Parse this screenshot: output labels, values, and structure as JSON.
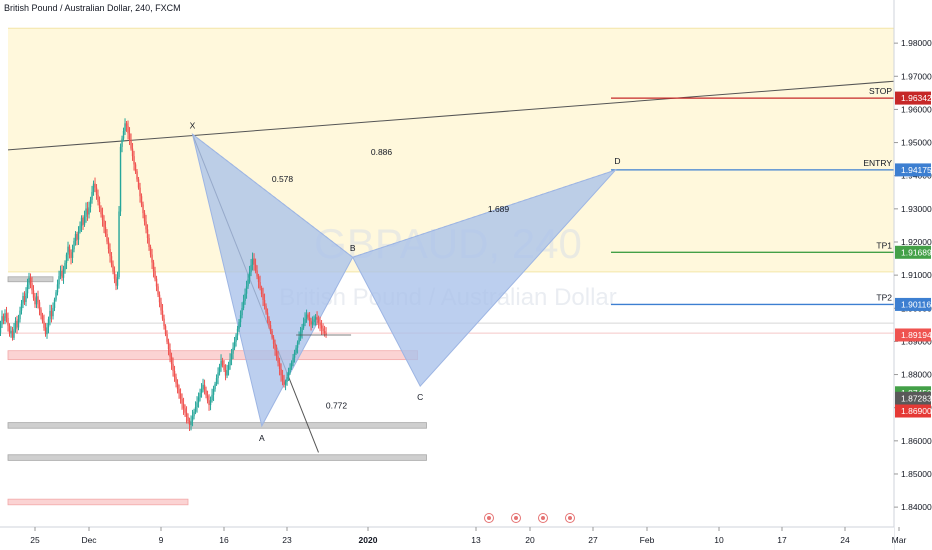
{
  "header": {
    "title": "British Pound / Australian Dollar, 240, FXCM"
  },
  "watermark": {
    "symbol": "GBPAUD, 240",
    "name": "British Pound / Australian Dollar"
  },
  "colors": {
    "up": "#26a69a",
    "down": "#ef5350",
    "pattern": "#a9c1ea",
    "stop": "#c62828",
    "entry": "#3d7fd1",
    "tp1": "#43a047",
    "tp2": "#3d7fd1",
    "zone": "#fff8dc",
    "red_zone": "#fbd3d3",
    "grey_zone": "#cfcfcf",
    "axis_text": "#131722"
  },
  "chart_data": {
    "type": "candlestick",
    "symbol": "GBPAUD",
    "timeframe": "240",
    "y_axis": {
      "ylim": [
        1.834,
        1.99
      ],
      "ticks": [
        "1.98000",
        "1.97000",
        "1.96000",
        "1.95000",
        "1.94000",
        "1.93000",
        "1.92000",
        "1.91000",
        "1.90000",
        "1.89000",
        "1.88000",
        "1.87000",
        "1.86000",
        "1.85000",
        "1.84000"
      ],
      "tick_values": [
        1.98,
        1.97,
        1.96,
        1.95,
        1.94,
        1.93,
        1.92,
        1.91,
        1.9,
        1.89,
        1.88,
        1.87,
        1.86,
        1.85,
        1.84
      ]
    },
    "x_axis": {
      "ticks": [
        "25",
        "Dec",
        "9",
        "16",
        "23",
        "2020",
        "13",
        "20",
        "27",
        "Feb",
        "10",
        "17",
        "24",
        "Mar"
      ],
      "tick_bold": [
        false,
        false,
        false,
        false,
        false,
        true,
        false,
        false,
        false,
        false,
        false,
        false,
        false,
        false
      ],
      "tick_days": [
        0,
        6,
        14,
        21,
        28,
        37,
        49,
        55,
        62,
        68,
        76,
        83,
        90,
        96
      ]
    },
    "levels": [
      {
        "label": "STOP",
        "price": 1.96342,
        "price_label": "1.96342",
        "start_day": 67
      },
      {
        "label": "ENTRY",
        "price": 1.94175,
        "price_label": "1.94175",
        "start_day": 67
      },
      {
        "label": "TP1",
        "price": 1.91689,
        "price_label": "1.91689",
        "start_day": 67
      },
      {
        "label": "TP2",
        "price": 1.90116,
        "price_label": "1.90116",
        "start_day": 67
      }
    ],
    "price_tags": [
      {
        "label": "1.89194",
        "price": 1.89194,
        "color": "#ef5350"
      },
      {
        "label": "1.87450",
        "price": 1.8745,
        "color": "#43a047"
      },
      {
        "label": "1.87283",
        "price": 1.87283,
        "color": "#595959"
      },
      {
        "label": "1.86900",
        "price": 1.869,
        "color": "#e53935"
      }
    ],
    "current_price": 1.89194,
    "pattern": {
      "points": [
        {
          "label": "X",
          "day": 20.5,
          "price": 1.9525
        },
        {
          "label": "A",
          "day": 28.2,
          "price": 1.8645
        },
        {
          "label": "B",
          "day": 38.3,
          "price": 1.9154
        },
        {
          "label": "C",
          "day": 45.8,
          "price": 1.8765
        },
        {
          "label": "D",
          "day": 67.5,
          "price": 1.9417
        }
      ],
      "ratios": [
        {
          "label": "0.578",
          "day": 30.5,
          "price": 1.9381
        },
        {
          "label": "0.886",
          "day": 41.5,
          "price": 1.9463
        },
        {
          "label": "1.689",
          "day": 54.5,
          "price": 1.929
        },
        {
          "label": "0.772",
          "day": 36.5,
          "price": 1.8697
        }
      ]
    },
    "zones": [
      {
        "kind": "yellow",
        "from_day": 0,
        "to_day": 100,
        "top": 1.9845,
        "bottom": 1.911
      },
      {
        "kind": "red",
        "from_day": 0,
        "to_day": 45.5,
        "top": 1.8872,
        "bottom": 1.8845
      },
      {
        "kind": "grey",
        "from_day": 0,
        "to_day": 46.5,
        "top": 1.8655,
        "bottom": 1.8638
      },
      {
        "kind": "grey",
        "from_day": 0,
        "to_day": 46.5,
        "top": 1.8558,
        "bottom": 1.8541
      },
      {
        "kind": "red",
        "from_day": 0,
        "to_day": 20,
        "top": 1.8424,
        "bottom": 1.8407
      },
      {
        "kind": "grey",
        "from_day": 0,
        "to_day": 5,
        "top": 1.9095,
        "bottom": 1.908
      }
    ],
    "trend_lines": [
      {
        "from_day": 0,
        "from_price": 1.9478,
        "to_day": 100,
        "to_price": 1.9685,
        "color": "#555555"
      },
      {
        "from_day": 20.5,
        "from_price": 1.9525,
        "to_day": 34.5,
        "to_price": 1.8565,
        "color": "#555555"
      }
    ],
    "ohlc": {
      "start_day": -3.5,
      "step_day": 0.1667,
      "closes": [
        1.895,
        1.8974,
        1.8998,
        1.8985,
        1.8962,
        1.8943,
        1.8957,
        1.8981,
        1.9002,
        1.8979,
        1.8955,
        1.8931,
        1.8943,
        1.8925,
        1.8906,
        1.8927,
        1.8951,
        1.8976,
        1.8962,
        1.8985,
        1.8971,
        1.8948,
        1.8924,
        1.8932,
        1.8911,
        1.8937,
        1.8962,
        1.8942,
        1.8967,
        1.8993,
        1.9014,
        1.9037,
        1.9019,
        1.9045,
        1.9071,
        1.9092,
        1.9076,
        1.9054,
        1.9032,
        1.9012,
        1.9036,
        1.9018,
        1.8996,
        1.8978,
        1.8961,
        1.8941,
        1.8922,
        1.8943,
        1.8967,
        1.8992,
        1.8976,
        1.9001,
        1.9026,
        1.9048,
        1.9072,
        1.9097,
        1.9113,
        1.9092,
        1.9117,
        1.9137,
        1.9162,
        1.9186,
        1.9169,
        1.9152,
        1.9178,
        1.9203,
        1.9224,
        1.9207,
        1.9232,
        1.9249,
        1.9273,
        1.9252,
        1.9276,
        1.9301,
        1.9283,
        1.9305,
        1.9327,
        1.9351,
        1.9376,
        1.9364,
        1.9342,
        1.9321,
        1.9302,
        1.9284,
        1.9266,
        1.9245,
        1.9224,
        1.9201,
        1.9179,
        1.9157,
        1.9132,
        1.9111,
        1.9089,
        1.9068,
        1.9094,
        1.9292,
        1.9487,
        1.9512,
        1.9535,
        1.9558,
        1.9549,
        1.9528,
        1.9508,
        1.9482,
        1.9459,
        1.9434,
        1.9413,
        1.9389,
        1.9364,
        1.9338,
        1.9313,
        1.9287,
        1.9262,
        1.9238,
        1.9212,
        1.9185,
        1.9162,
        1.9138,
        1.9112,
        1.9089,
        1.9066,
        1.9041,
        1.9018,
        1.8993,
        1.8969,
        1.8946,
        1.8922,
        1.8899,
        1.8877,
        1.8854,
        1.8832,
        1.8811,
        1.8792,
        1.8773,
        1.8756,
        1.8743,
        1.8727,
        1.8712,
        1.8698,
        1.8685,
        1.8672,
        1.8659,
        1.8648,
        1.8661,
        1.8674,
        1.8688,
        1.8702,
        1.8716,
        1.8731,
        1.8744,
        1.8756,
        1.8769,
        1.8752,
        1.8737,
        1.8722,
        1.8708,
        1.8723,
        1.8739,
        1.8756,
        1.8772,
        1.8789,
        1.8806,
        1.8824,
        1.8842,
        1.8829,
        1.8814,
        1.8797,
        1.8813,
        1.8828,
        1.8845,
        1.8863,
        1.8881,
        1.8899,
        1.8918,
        1.8938,
        1.8958,
        1.8979,
        1.9001,
        1.9022,
        1.9044,
        1.9066,
        1.9087,
        1.9109,
        1.9131,
        1.915,
        1.9132,
        1.9114,
        1.9096,
        1.9079,
        1.9061,
        1.9043,
        1.9025,
        1.9006,
        1.8987,
        1.8968,
        1.8949,
        1.8931,
        1.8912,
        1.8893,
        1.8874,
        1.8855,
        1.8836,
        1.8817,
        1.8798,
        1.8782,
        1.8769,
        1.8778,
        1.8792,
        1.8807,
        1.8821,
        1.8836,
        1.8851,
        1.8866,
        1.8881,
        1.8897,
        1.8912,
        1.8927,
        1.8941,
        1.8955,
        1.8968,
        1.8981,
        1.8972,
        1.8962,
        1.8951,
        1.8958,
        1.8966,
        1.8973,
        1.8965,
        1.8957,
        1.8948,
        1.8939,
        1.8931,
        1.8925,
        1.8919
      ]
    }
  }
}
